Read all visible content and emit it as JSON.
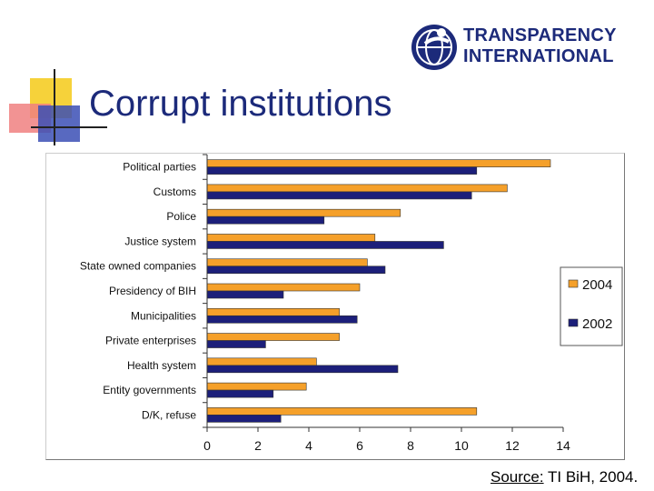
{
  "slide": {
    "title": "Corrupt institutions",
    "logo_line1": "TRANSPARENCY",
    "logo_line2": "INTERNATIONAL",
    "source_label": "Source:",
    "source_text": " TI BiH, 2004."
  },
  "colors": {
    "series_2004": "#f5a02a",
    "series_2002": "#1c1f7a",
    "title": "#1c2a7a",
    "deco_yellow": "#f6d23a",
    "deco_red": "#f08080",
    "deco_blue": "#3b4fb5"
  },
  "chart_data": {
    "type": "bar",
    "orientation": "horizontal",
    "categories": [
      "Political parties",
      "Customs",
      "Police",
      "Justice system",
      "State owned companies",
      "Presidency of BIH",
      "Municipalities",
      "Private enterprises",
      "Health system",
      "Entity governments",
      "D/K, refuse"
    ],
    "series": [
      {
        "name": "2004",
        "values": [
          13.5,
          11.8,
          7.6,
          6.6,
          6.3,
          6.0,
          5.2,
          5.2,
          4.3,
          3.9,
          10.6
        ]
      },
      {
        "name": "2002",
        "values": [
          10.6,
          10.4,
          4.6,
          9.3,
          7.0,
          3.0,
          5.9,
          2.3,
          7.5,
          2.6,
          2.9
        ]
      }
    ],
    "xlim": [
      0,
      14
    ],
    "xticks": [
      0,
      2,
      4,
      6,
      8,
      10,
      12,
      14
    ],
    "legend_position": "right",
    "grid": false
  }
}
